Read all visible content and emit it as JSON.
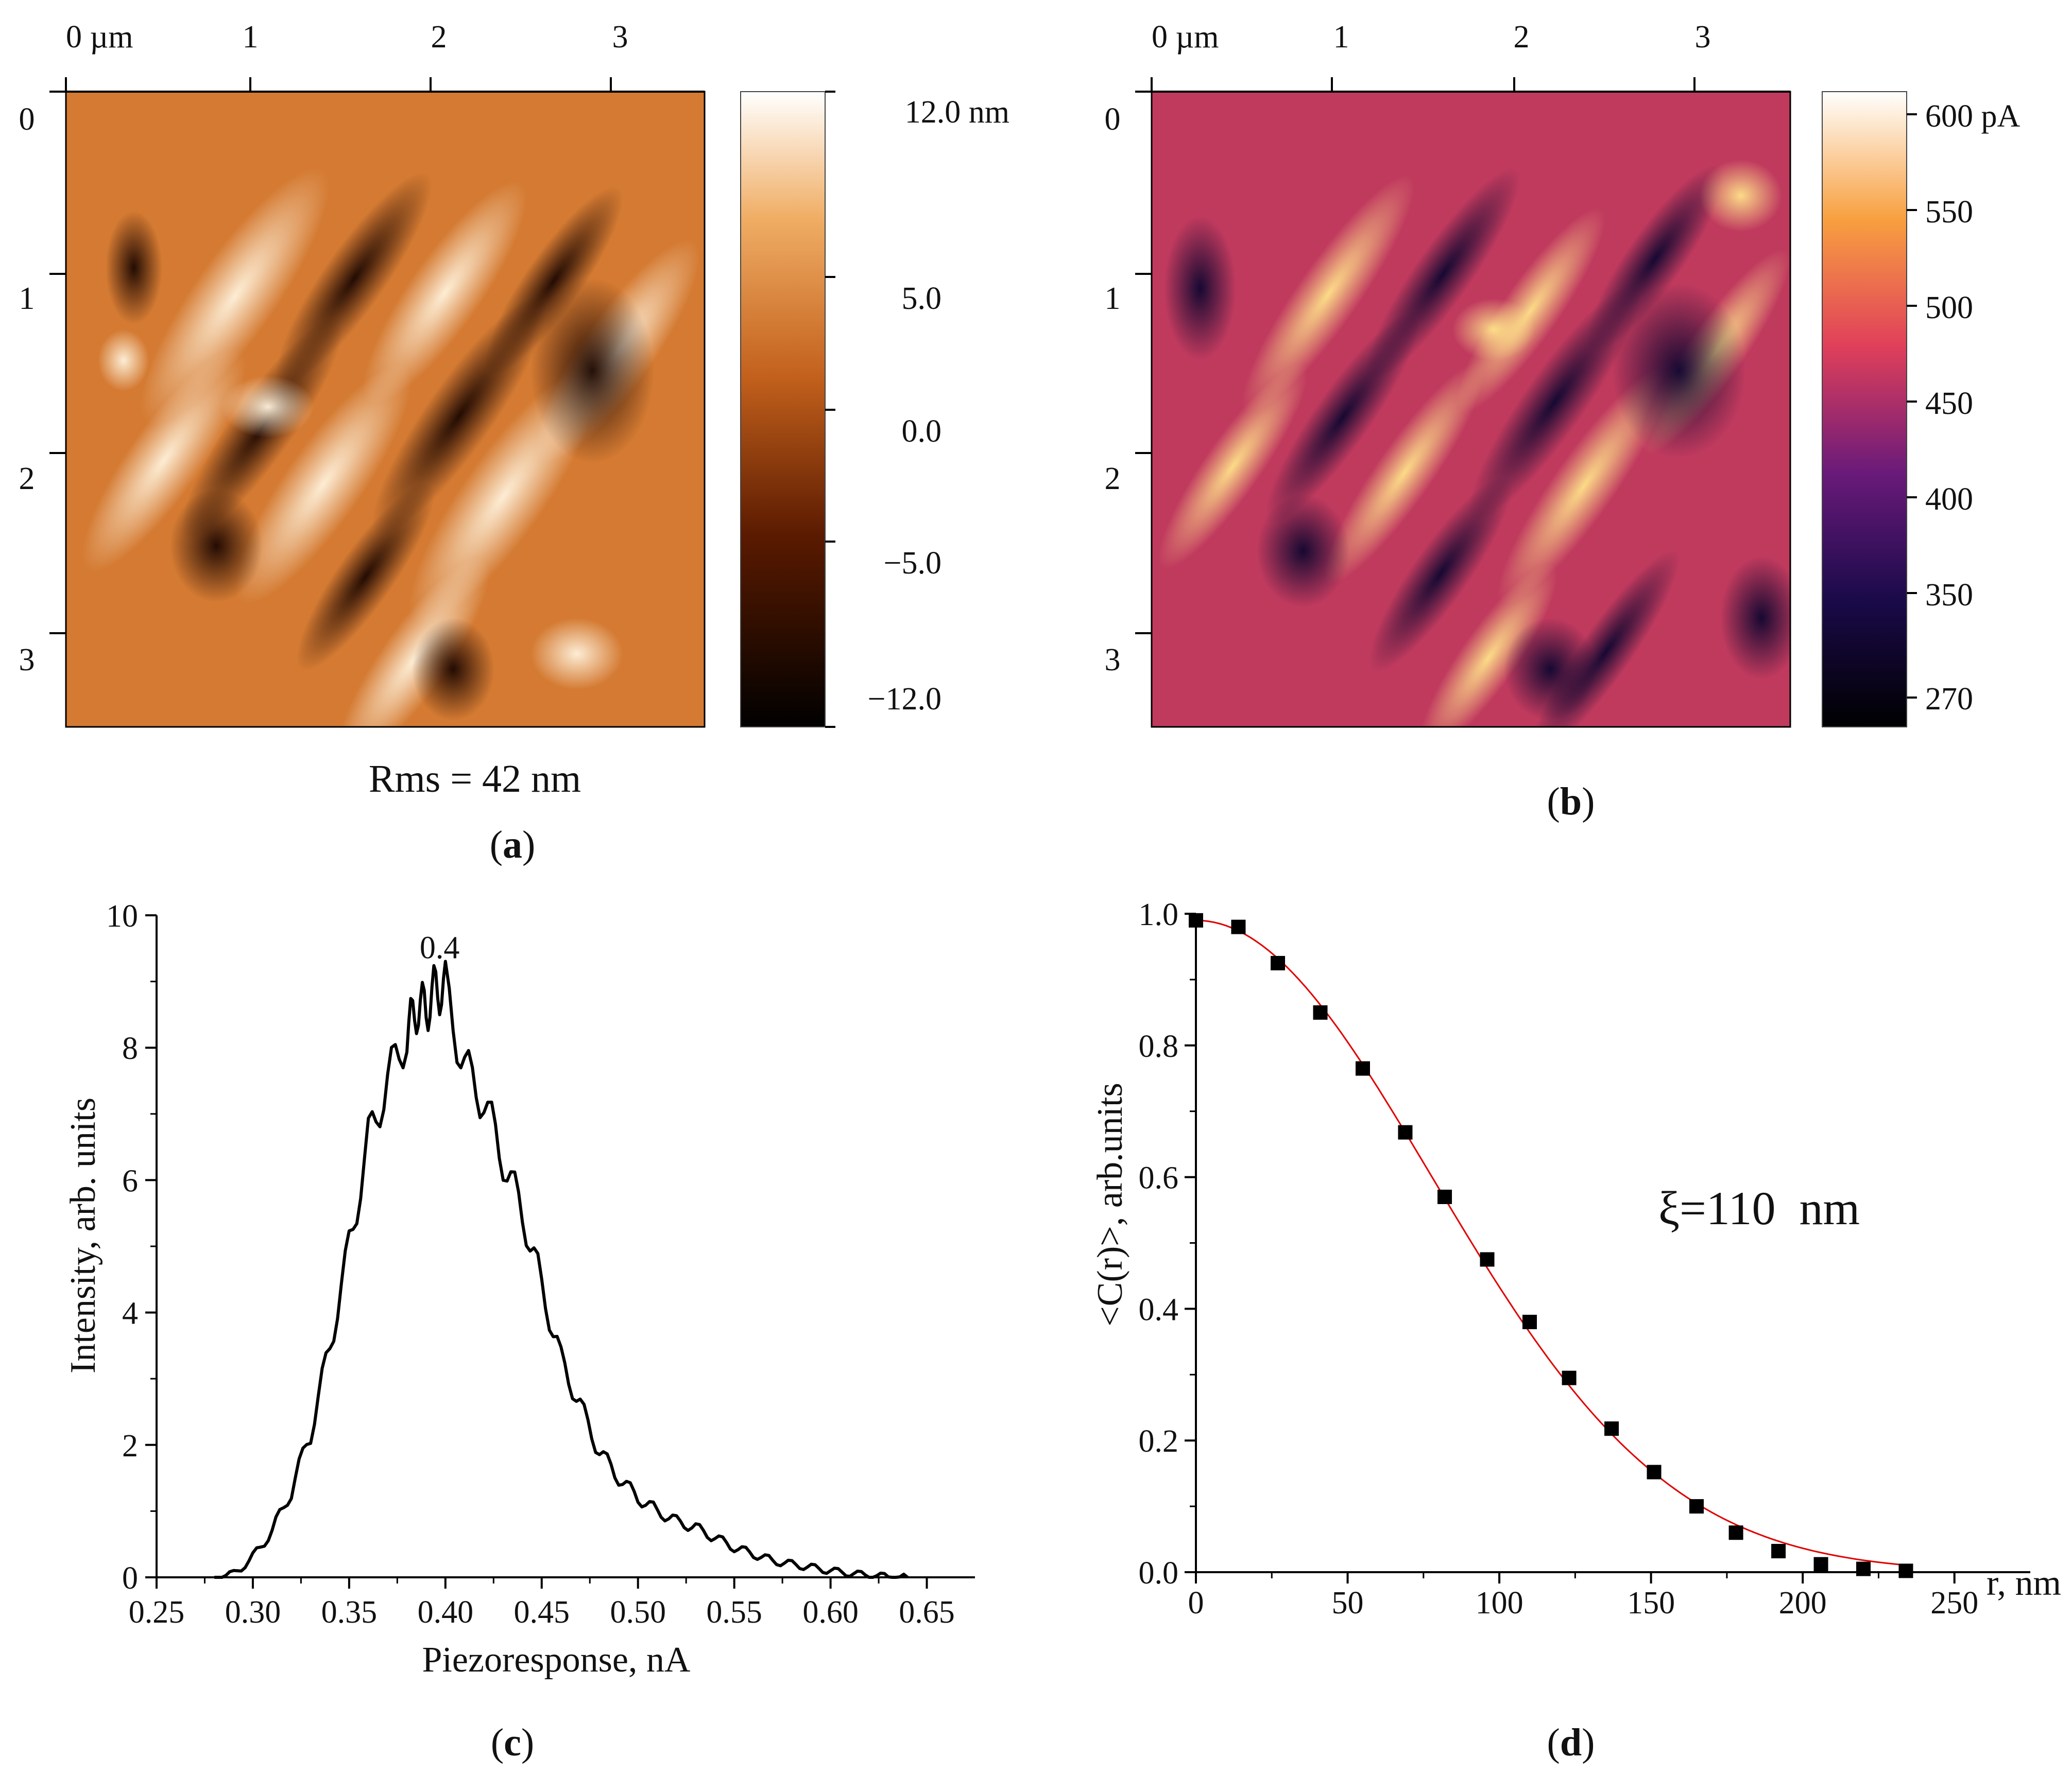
{
  "chart_data": [
    {
      "panel": "a",
      "type": "heatmap",
      "x_unit_label": "0 µm",
      "x_ticks": [
        0,
        1,
        2,
        3
      ],
      "y_ticks": [
        0,
        1,
        2,
        3
      ],
      "colorbar": {
        "ticks": [
          "12.0 nm",
          "5.0",
          "0.0",
          "−5.0",
          "−12.0"
        ]
      },
      "annotation": "Rms = 42 nm",
      "caption": "a"
    },
    {
      "panel": "b",
      "type": "heatmap",
      "x_unit_label": "0 µm",
      "x_ticks": [
        0,
        1,
        2,
        3
      ],
      "y_ticks": [
        0,
        1,
        2,
        3
      ],
      "colorbar": {
        "ticks": [
          "600 pA",
          "550",
          "500",
          "450",
          "400",
          "350",
          "270"
        ]
      },
      "caption": "b"
    },
    {
      "panel": "c",
      "type": "line",
      "xlabel": "Piezoresponse, nA",
      "ylabel": "Intensity, arb. units",
      "xlim": [
        0.25,
        0.675
      ],
      "ylim": [
        0,
        10
      ],
      "x_ticks": [
        "0.25",
        "0.30",
        "0.35",
        "0.40",
        "0.45",
        "0.50",
        "0.55",
        "0.60",
        "0.65"
      ],
      "y_ticks": [
        "0",
        "2",
        "4",
        "6",
        "8",
        "10"
      ],
      "annotation": "0.4",
      "annotation_pos": [
        0.397,
        9.35
      ],
      "x": [
        0.28,
        0.29,
        0.3,
        0.31,
        0.32,
        0.33,
        0.34,
        0.35,
        0.36,
        0.37,
        0.38,
        0.385,
        0.39,
        0.395,
        0.4,
        0.41,
        0.42,
        0.43,
        0.44,
        0.45,
        0.46,
        0.47,
        0.48,
        0.49,
        0.5,
        0.51,
        0.52,
        0.53,
        0.54,
        0.55,
        0.56,
        0.57,
        0.58,
        0.59,
        0.6,
        0.61,
        0.62,
        0.63,
        0.64
      ],
      "y": [
        0.0,
        0.05,
        0.3,
        0.7,
        1.3,
        2.2,
        3.5,
        5.0,
        6.6,
        7.5,
        8.2,
        8.6,
        8.6,
        8.9,
        8.9,
        7.7,
        7.2,
        6.3,
        5.5,
        4.4,
        3.3,
        2.6,
        1.9,
        1.5,
        1.2,
        1.0,
        0.85,
        0.75,
        0.6,
        0.45,
        0.35,
        0.25,
        0.2,
        0.15,
        0.1,
        0.06,
        0.03,
        0.01,
        0.0
      ],
      "caption": "c"
    },
    {
      "panel": "d",
      "type": "scatter",
      "xlabel": "r, nm",
      "ylabel": "<C(r)>, arb.units",
      "xlim": [
        0,
        275
      ],
      "ylim": [
        0,
        1.0
      ],
      "x_ticks": [
        "0",
        "50",
        "100",
        "150",
        "200",
        "250"
      ],
      "y_ticks": [
        "0.0",
        "0.2",
        "0.4",
        "0.6",
        "0.8",
        "1.0"
      ],
      "annotation": "ξ=110  nm",
      "series": [
        {
          "name": "data",
          "x": [
            0,
            14,
            27,
            41,
            55,
            69,
            82,
            96,
            110,
            123,
            137,
            151,
            165,
            178,
            192,
            206,
            220,
            234
          ],
          "y": [
            0.99,
            0.98,
            0.925,
            0.85,
            0.765,
            0.668,
            0.57,
            0.475,
            0.38,
            0.295,
            0.218,
            0.152,
            0.1,
            0.06,
            0.032,
            0.012,
            0.005,
            0.002
          ]
        },
        {
          "name": "fit",
          "model": "gaussian",
          "amplitude": 0.99,
          "xi": 110,
          "x_range": [
            0,
            234
          ],
          "color": "#e00000"
        }
      ],
      "caption": "d"
    }
  ]
}
